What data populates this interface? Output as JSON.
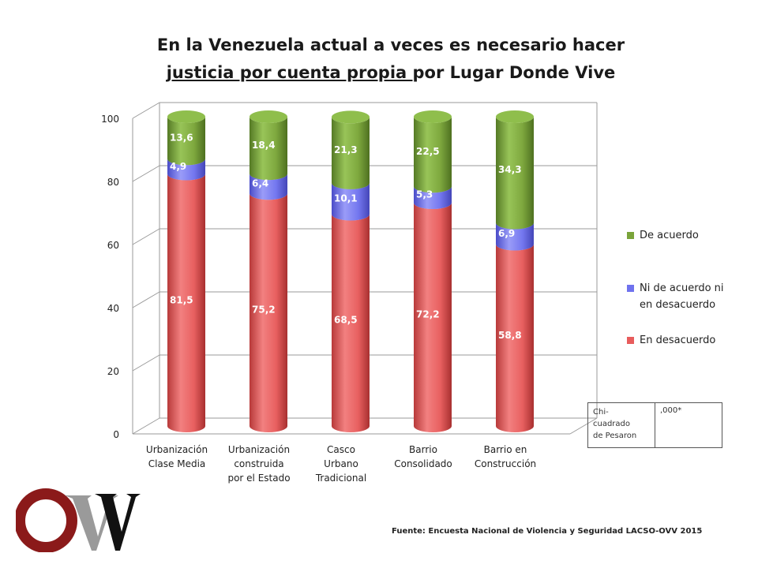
{
  "title": {
    "line1": "En la Venezuela actual a veces es necesario hacer",
    "underlined": "justicia por cuenta propia ",
    "rest": "por Lugar Donde Vive"
  },
  "chart_data": {
    "type": "bar",
    "stacked": true,
    "categories": [
      [
        "Urbanización",
        "Clase Media"
      ],
      [
        "Urbanización",
        "construida",
        "por el Estado"
      ],
      [
        "Casco",
        "Urbano",
        "Tradicional"
      ],
      [
        "Barrio",
        "Consolidado"
      ],
      [
        "Barrio en",
        "Construcción"
      ]
    ],
    "series": [
      {
        "name": "En desacuerdo",
        "values": [
          81.5,
          75.2,
          68.5,
          72.2,
          58.8
        ],
        "labels": [
          "81,5",
          "75,2",
          "68,5",
          "72,2",
          "58,8"
        ],
        "color": "#e85c5c"
      },
      {
        "name": "Ni de acuerdo ni en desacuerdo",
        "values": [
          4.9,
          6.4,
          10.1,
          5.3,
          6.9
        ],
        "labels": [
          "4,9",
          "6,4",
          "10,1",
          "5,3",
          "6,9"
        ],
        "color": "#6f72ee"
      },
      {
        "name": "De acuerdo",
        "values": [
          13.6,
          18.4,
          21.3,
          22.5,
          34.3
        ],
        "labels": [
          "13,6",
          "18,4",
          "21,3",
          "22,5",
          "34,3"
        ],
        "color": "#7aa43a"
      }
    ],
    "ylim": [
      0,
      100
    ],
    "yticks": [
      0,
      20,
      40,
      60,
      80,
      100
    ],
    "ytick_labels": [
      "0",
      "20",
      "40",
      "60",
      "80",
      "100"
    ],
    "grid": true,
    "legend": "right",
    "legend_lines": [
      [
        "De acuerdo"
      ],
      [
        "Ni de acuerdo ni",
        "en desacuerdo"
      ],
      [
        "En desacuerdo"
      ]
    ]
  },
  "chi_table": {
    "label_lines": [
      "Chi-",
      "cuadrado",
      "de Pesaron"
    ],
    "value": ",000*"
  },
  "source": "Fuente: Encuesta Nacional de Violencia y Seguridad LACSO-OVV 2015",
  "logo": {
    "text": "OVV",
    "colors": {
      "o": "#8b1a1a",
      "v1": "#9a9a9a",
      "v2": "#111111"
    }
  }
}
